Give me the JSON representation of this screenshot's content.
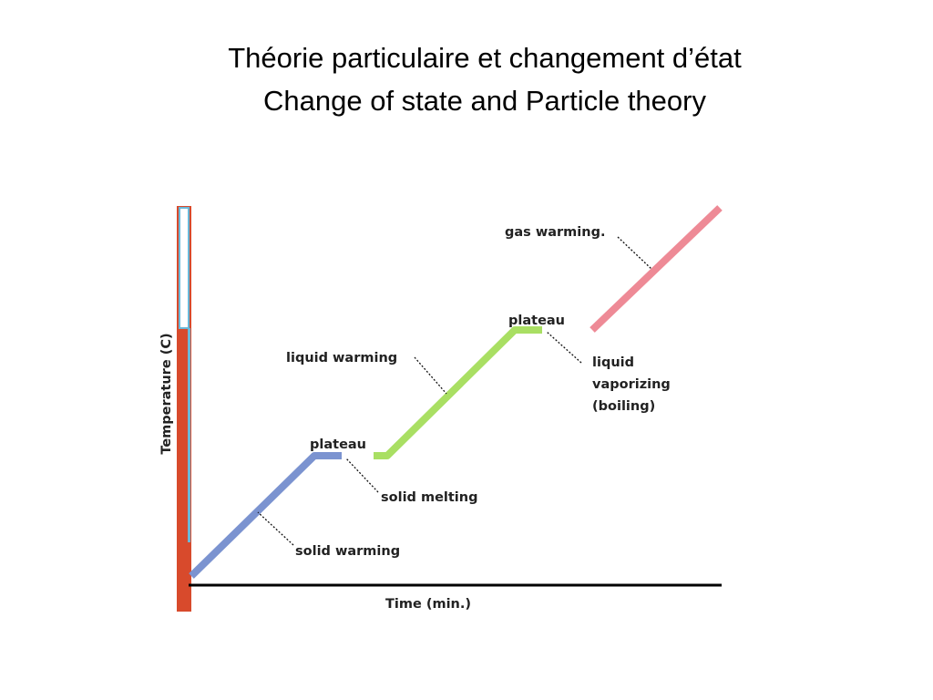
{
  "header": {
    "title_lines": [
      "Théorie particulaire et changement d’état",
      "Change of state and Particle theory"
    ]
  },
  "diagram": {
    "y_axis_label": "Temperature (C)",
    "x_axis_label": "Time (min.)",
    "annotations": [
      {
        "lines": [
          "plateau"
        ]
      },
      {
        "lines": [
          "solid melting"
        ]
      },
      {
        "lines": [
          "solid warming"
        ]
      },
      {
        "lines": [
          "liquid warming"
        ]
      },
      {
        "lines": [
          "plateau"
        ]
      },
      {
        "lines": [
          "liquid",
          "vaporizing",
          "(boiling)"
        ]
      },
      {
        "lines": [
          "gas warming."
        ]
      }
    ]
  }
}
